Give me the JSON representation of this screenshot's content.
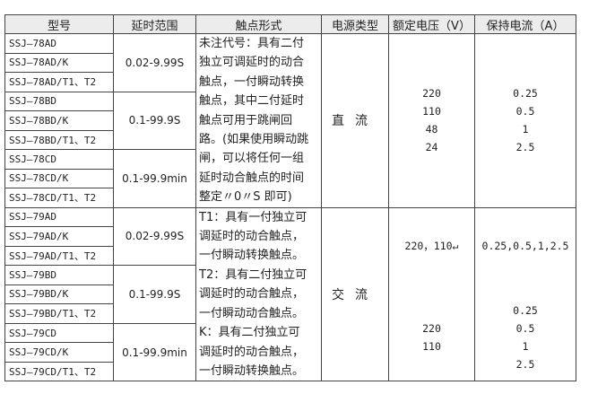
{
  "headers": [
    "型号",
    "延时范围",
    "触点形式",
    "电源类型",
    "额定电压（V）",
    "保持电流（A）"
  ],
  "groups": [
    {
      "models": [
        "SSJ—78AD",
        "SSJ—78AD/K",
        "SSJ—78AD/T1、T2"
      ],
      "range": "0.02-9.99S"
    },
    {
      "models": [
        "SSJ—78BD",
        "SSJ—78BD/K",
        "SSJ—78BD/T1、T2"
      ],
      "range": "0.1-99.9S"
    },
    {
      "models": [
        "SSJ—78CD",
        "SSJ—78CD/K",
        "SSJ—78CD/T1、T2"
      ],
      "range": "0.1-99.9min"
    },
    {
      "models": [
        "SSJ—79AD",
        "SSJ—79AD/K",
        "SSJ—79AD/T1、T2"
      ],
      "range": "0.02-9.99S"
    },
    {
      "models": [
        "SSJ—79BD",
        "SSJ—79BD/K",
        "SSJ—79BD/T1、T2"
      ],
      "range": "0.1-99.9S"
    },
    {
      "models": [
        "SSJ—79CD",
        "SSJ—79CD/K",
        "SSJ—79CD/T1、T2"
      ],
      "range": "0.1-99.9min"
    }
  ],
  "contact_dc": [
    "未注代号：具有二付",
    "独立可调延时的动合",
    "触点，一付瞬动转换",
    "触点，其中二付延时",
    "触点可用于跳闸回",
    "路。(如果使用瞬动跳",
    "闸，可以将任何一组",
    "延时动合触点的时间",
    "整定〃0〃S 即可)"
  ],
  "contact_ac": [
    " T1：具有一付独立可",
    "调延时的动合触点，",
    "一付瞬动转换触点。",
    " T2：具有二付独立可",
    "调延时的动合触点，",
    "一付瞬动动合触点。",
    " K：具有二付独立可",
    "调延时的动合触点，",
    "一付瞬动转换触点。"
  ],
  "dc": {
    "type": "直流",
    "voltages": [
      "220",
      "110",
      "48",
      "24"
    ],
    "currents": [
      "0.25",
      "0.5",
      "1",
      "2.5"
    ]
  },
  "ac": {
    "type": "交流",
    "voltage_a": "220，110↵",
    "current_a": "0.25,0.5,1,2.5",
    "voltages_b": [
      "220",
      "",
      "110"
    ],
    "currents_b": [
      "0.25",
      "0.5",
      "1",
      "2.5"
    ]
  }
}
